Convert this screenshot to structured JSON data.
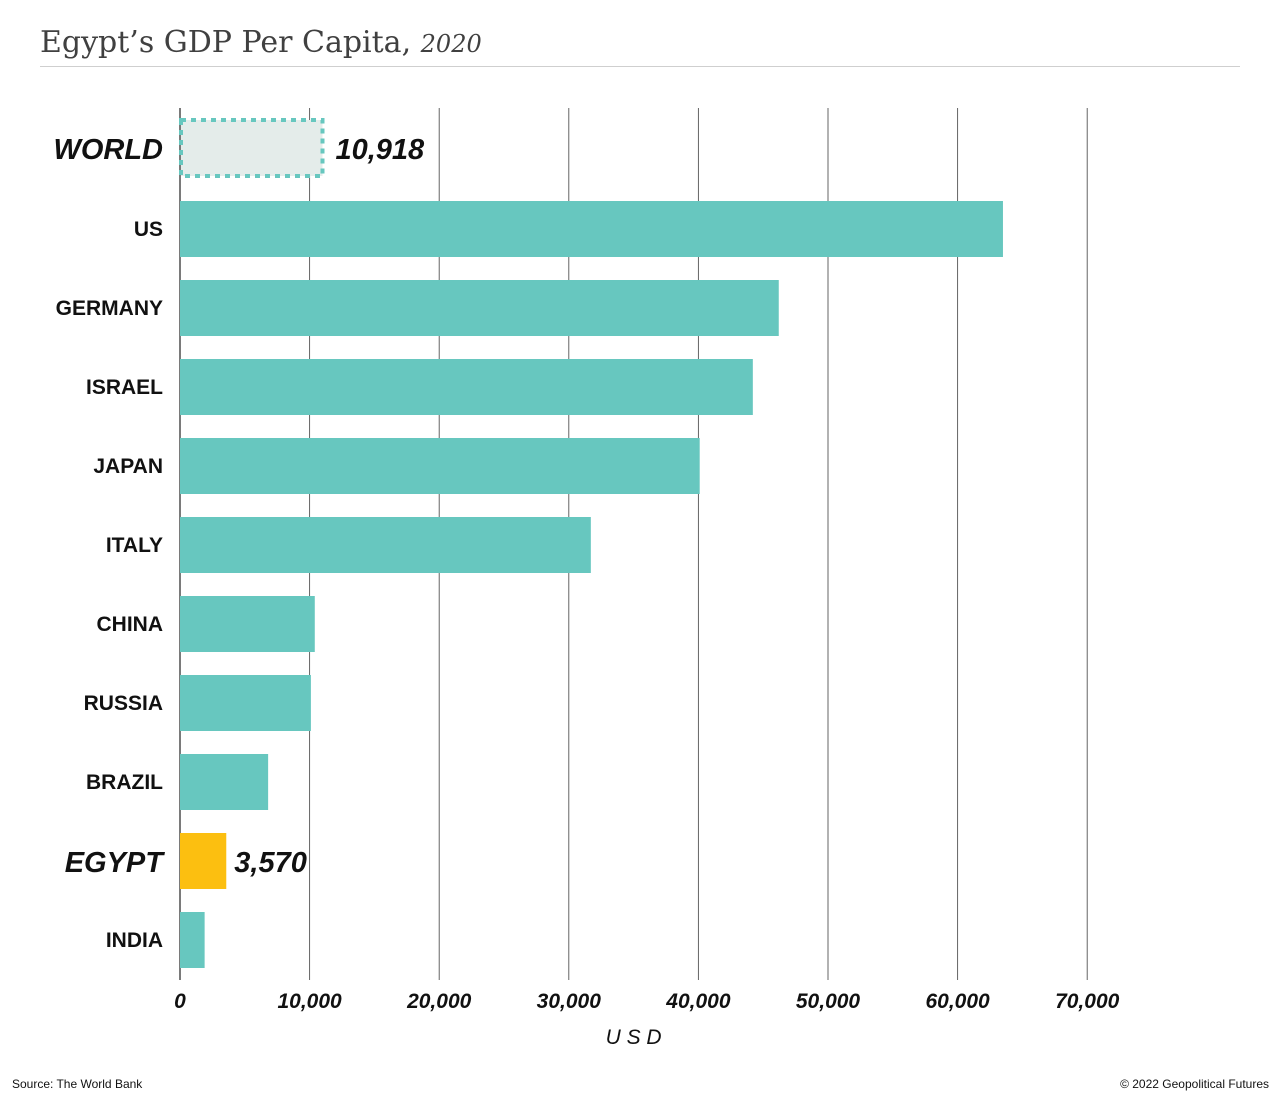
{
  "header": {
    "title": "Egypt’s GDP Per Capita,",
    "title_year": "2020"
  },
  "footer": {
    "source": "Source: The World Bank",
    "copyright": "© 2022 Geopolitical Futures"
  },
  "chart_data": {
    "type": "bar",
    "orientation": "horizontal",
    "xlabel": "U S D",
    "xlim": [
      0,
      70000
    ],
    "xticks": [
      0,
      10000,
      20000,
      30000,
      40000,
      50000,
      60000,
      70000
    ],
    "xtick_labels": [
      "0",
      "10,000",
      "20,000",
      "30,000",
      "40,000",
      "50,000",
      "60,000",
      "70,000"
    ],
    "grid": "vertical",
    "categories": [
      "WORLD",
      "US",
      "GERMANY",
      "ISRAEL",
      "JAPAN",
      "ITALY",
      "CHINA",
      "RUSSIA",
      "BRAZIL",
      "EGYPT",
      "INDIA"
    ],
    "values": [
      10918,
      63500,
      46200,
      44200,
      40100,
      31700,
      10400,
      10100,
      6800,
      3570,
      1900
    ],
    "highlight": {
      "WORLD": {
        "style": "dashed-outline",
        "label": "10,918"
      },
      "EGYPT": {
        "style": "accent",
        "label": "3,570"
      }
    },
    "colors": {
      "bar": "#67c7bf",
      "world_fill": "#e4ecea",
      "world_border": "#67c7bf",
      "egypt": "#fcbf10",
      "gridline": "#555555"
    }
  }
}
